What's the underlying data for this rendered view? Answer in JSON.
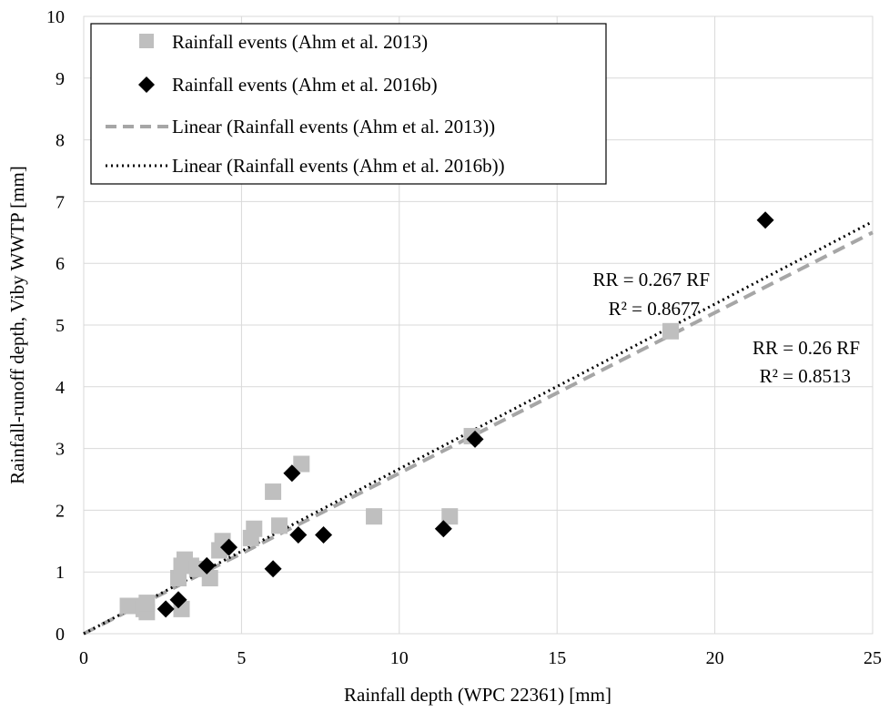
{
  "chart_data": {
    "type": "scatter",
    "xlabel": "Rainfall depth (WPC 22361) [mm]",
    "ylabel": "Rainfall-runoff depth, Viby WWTP [mm]",
    "xlim": [
      0,
      25
    ],
    "ylim": [
      0,
      10
    ],
    "xticks": [
      0,
      5,
      10,
      15,
      20,
      25
    ],
    "yticks": [
      0,
      1,
      2,
      3,
      4,
      5,
      6,
      7,
      8,
      9,
      10
    ],
    "grid": true,
    "legend_position": "top-left",
    "series": [
      {
        "name": "Rainfall events (Ahm et al. 2013)",
        "marker": "square",
        "color": "#bfbfbf",
        "points": [
          [
            1.4,
            0.45
          ],
          [
            1.6,
            0.45
          ],
          [
            1.9,
            0.4
          ],
          [
            2.0,
            0.35
          ],
          [
            2.0,
            0.5
          ],
          [
            3.0,
            0.9
          ],
          [
            3.1,
            1.1
          ],
          [
            3.1,
            0.4
          ],
          [
            3.2,
            1.2
          ],
          [
            3.4,
            1.1
          ],
          [
            3.6,
            1.05
          ],
          [
            4.0,
            0.9
          ],
          [
            4.3,
            1.35
          ],
          [
            4.4,
            1.5
          ],
          [
            5.3,
            1.55
          ],
          [
            5.4,
            1.7
          ],
          [
            6.0,
            2.3
          ],
          [
            6.2,
            1.75
          ],
          [
            6.9,
            2.75
          ],
          [
            9.2,
            1.9
          ],
          [
            11.6,
            1.9
          ],
          [
            12.3,
            3.2
          ],
          [
            18.6,
            4.9
          ]
        ]
      },
      {
        "name": "Rainfall events (Ahm et al. 2016b)",
        "marker": "diamond",
        "color": "#000000",
        "points": [
          [
            2.6,
            0.4
          ],
          [
            3.0,
            0.55
          ],
          [
            3.9,
            1.1
          ],
          [
            4.6,
            1.4
          ],
          [
            6.0,
            1.05
          ],
          [
            6.6,
            2.6
          ],
          [
            6.8,
            1.6
          ],
          [
            7.6,
            1.6
          ],
          [
            11.4,
            1.7
          ],
          [
            12.4,
            3.15
          ],
          [
            21.6,
            6.7
          ]
        ]
      }
    ],
    "trendlines": [
      {
        "name": "Linear (Rainfall events (Ahm et al. 2013))",
        "style": "dashed",
        "color": "#a6a6a6",
        "slope": 0.26,
        "equation": "RR = 0.26 RF",
        "r2": "R² = 0.8513"
      },
      {
        "name": "Linear (Rainfall events (Ahm et al. 2016b))",
        "style": "dotted",
        "color": "#000000",
        "slope": 0.267,
        "equation": "RR = 0.267 RF",
        "r2": "R² = 0.8677"
      }
    ]
  }
}
